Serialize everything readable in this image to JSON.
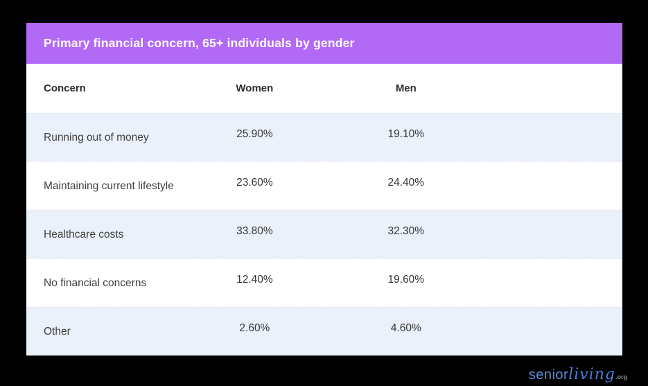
{
  "header": {
    "title": "Primary financial concern, 65+ individuals by gender"
  },
  "table": {
    "columns": [
      "Concern",
      "Women",
      "Men"
    ],
    "rows": [
      {
        "concern": "Running out of money",
        "women": "25.90%",
        "men": "19.10%"
      },
      {
        "concern": "Maintaining current lifestyle",
        "women": "23.60%",
        "men": "24.40%"
      },
      {
        "concern": "Healthcare costs",
        "women": "33.80%",
        "men": "32.30%"
      },
      {
        "concern": "No financial concerns",
        "women": "12.40%",
        "men": "19.60%"
      },
      {
        "concern": "Other",
        "women": "2.60%",
        "men": "4.60%"
      }
    ]
  },
  "footer": {
    "logo_senior": "senior",
    "logo_living": "living",
    "logo_suffix": ".org"
  },
  "colors": {
    "accent_purple": "#b269f6",
    "row_alt_blue": "#ebf1fa",
    "background": "#000000",
    "logo_blue": "#4a80d6"
  },
  "chart_data": {
    "type": "table",
    "title": "Primary financial concern, 65+ individuals by gender",
    "categories": [
      "Running out of money",
      "Maintaining current lifestyle",
      "Healthcare costs",
      "No financial concerns",
      "Other"
    ],
    "series": [
      {
        "name": "Women",
        "values": [
          25.9,
          23.6,
          33.8,
          12.4,
          2.6
        ]
      },
      {
        "name": "Men",
        "values": [
          19.1,
          24.4,
          32.3,
          19.6,
          4.6
        ]
      }
    ],
    "value_format": "percent",
    "source": "seniorliving.org"
  }
}
